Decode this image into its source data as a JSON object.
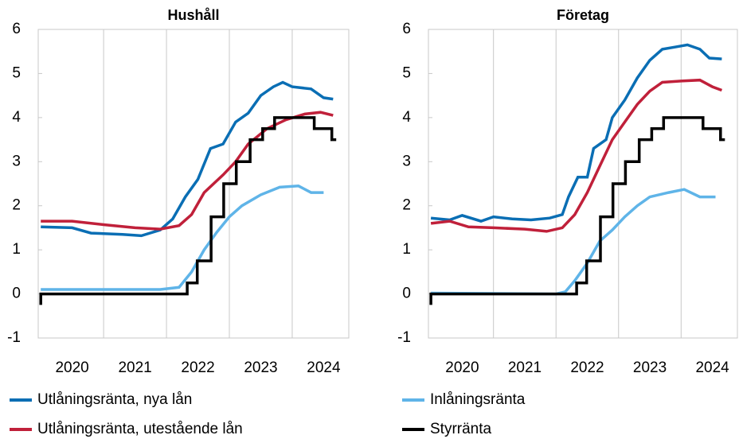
{
  "chart_data": [
    {
      "type": "line",
      "title": "Hushåll",
      "xlim": [
        2019.96,
        2024.9
      ],
      "ylim": [
        -1,
        6
      ],
      "xticks": [
        {
          "value": 2020.5,
          "label": "2020"
        },
        {
          "value": 2021.5,
          "label": "2021"
        },
        {
          "value": 2022.5,
          "label": "2022"
        },
        {
          "value": 2023.5,
          "label": "2023"
        },
        {
          "value": 2024.5,
          "label": "2024"
        }
      ],
      "yticks": [
        -1,
        0,
        1,
        2,
        3,
        4,
        5,
        6
      ],
      "series": [
        {
          "name": "Utlåningsränta, nya lån",
          "color": "#0a6eb4",
          "x": [
            2020.0,
            2020.5,
            2020.8,
            2021.3,
            2021.6,
            2021.9,
            2022.1,
            2022.3,
            2022.5,
            2022.7,
            2022.9,
            2023.1,
            2023.3,
            2023.5,
            2023.7,
            2023.85,
            2024.0,
            2024.3,
            2024.5,
            2024.65
          ],
          "values": [
            1.52,
            1.5,
            1.38,
            1.35,
            1.32,
            1.45,
            1.7,
            2.2,
            2.6,
            3.3,
            3.4,
            3.9,
            4.1,
            4.5,
            4.7,
            4.8,
            4.7,
            4.65,
            4.45,
            4.42
          ]
        },
        {
          "name": "Utlåningsränta, utestående lån",
          "color": "#c0203a",
          "x": [
            2020.0,
            2020.5,
            2021.0,
            2021.5,
            2021.9,
            2022.2,
            2022.4,
            2022.6,
            2022.9,
            2023.1,
            2023.3,
            2023.6,
            2023.9,
            2024.2,
            2024.45,
            2024.65
          ],
          "values": [
            1.65,
            1.65,
            1.57,
            1.5,
            1.47,
            1.55,
            1.8,
            2.3,
            2.7,
            3.0,
            3.4,
            3.75,
            3.95,
            4.08,
            4.12,
            4.05
          ]
        },
        {
          "name": "Inlåningsränta",
          "color": "#5fb4e8",
          "x": [
            2020.0,
            2021.0,
            2021.9,
            2022.2,
            2022.4,
            2022.6,
            2022.8,
            2023.0,
            2023.2,
            2023.5,
            2023.8,
            2024.1,
            2024.3,
            2024.5
          ],
          "values": [
            0.1,
            0.1,
            0.1,
            0.15,
            0.5,
            1.0,
            1.4,
            1.75,
            2.0,
            2.25,
            2.42,
            2.45,
            2.3,
            2.3
          ]
        },
        {
          "name": "Styrränta",
          "color": "#000000",
          "x": [
            2020.0,
            2020.0,
            2022.33,
            2022.33,
            2022.49,
            2022.49,
            2022.71,
            2022.71,
            2022.91,
            2022.91,
            2023.11,
            2023.11,
            2023.33,
            2023.33,
            2023.53,
            2023.53,
            2023.72,
            2023.72,
            2024.35,
            2024.35,
            2024.63,
            2024.63,
            2024.7
          ],
          "values": [
            -0.25,
            0,
            0,
            0.25,
            0.25,
            0.75,
            0.75,
            1.75,
            1.75,
            2.5,
            2.5,
            3.0,
            3.0,
            3.5,
            3.5,
            3.75,
            3.75,
            4.0,
            4.0,
            3.75,
            3.75,
            3.5,
            3.5
          ]
        }
      ]
    },
    {
      "type": "line",
      "title": "Företag",
      "xlim": [
        2019.96,
        2024.9
      ],
      "ylim": [
        -1,
        6
      ],
      "xticks": [
        {
          "value": 2020.5,
          "label": "2020"
        },
        {
          "value": 2021.5,
          "label": "2021"
        },
        {
          "value": 2022.5,
          "label": "2022"
        },
        {
          "value": 2023.5,
          "label": "2023"
        },
        {
          "value": 2024.5,
          "label": "2024"
        }
      ],
      "yticks": [
        -1,
        0,
        1,
        2,
        3,
        4,
        5,
        6
      ],
      "series": [
        {
          "color": "#0a6eb4",
          "x": [
            2020.0,
            2020.3,
            2020.5,
            2020.8,
            2021.0,
            2021.3,
            2021.6,
            2021.9,
            2022.1,
            2022.2,
            2022.35,
            2022.5,
            2022.6,
            2022.8,
            2022.9,
            2023.1,
            2023.3,
            2023.5,
            2023.7,
            2023.9,
            2024.1,
            2024.3,
            2024.45,
            2024.65
          ],
          "values": [
            1.72,
            1.68,
            1.78,
            1.65,
            1.75,
            1.7,
            1.68,
            1.72,
            1.8,
            2.2,
            2.65,
            2.65,
            3.3,
            3.5,
            4.0,
            4.4,
            4.9,
            5.3,
            5.55,
            5.6,
            5.65,
            5.55,
            5.35,
            5.33
          ]
        },
        {
          "color": "#c0203a",
          "x": [
            2020.0,
            2020.3,
            2020.6,
            2021.0,
            2021.5,
            2021.85,
            2022.1,
            2022.3,
            2022.5,
            2022.7,
            2022.9,
            2023.1,
            2023.3,
            2023.5,
            2023.7,
            2024.0,
            2024.3,
            2024.5,
            2024.65
          ],
          "values": [
            1.6,
            1.65,
            1.52,
            1.5,
            1.47,
            1.42,
            1.5,
            1.8,
            2.3,
            2.9,
            3.5,
            3.9,
            4.3,
            4.6,
            4.8,
            4.83,
            4.85,
            4.7,
            4.62
          ]
        },
        {
          "color": "#5fb4e8",
          "x": [
            2020.0,
            2022.0,
            2022.15,
            2022.3,
            2022.5,
            2022.7,
            2022.9,
            2023.1,
            2023.3,
            2023.5,
            2023.8,
            2024.05,
            2024.3,
            2024.55
          ],
          "values": [
            0.02,
            0.0,
            0.05,
            0.3,
            0.7,
            1.2,
            1.45,
            1.75,
            2.0,
            2.2,
            2.3,
            2.37,
            2.2,
            2.2
          ]
        },
        {
          "color": "#000000",
          "x": [
            2020.0,
            2020.0,
            2022.33,
            2022.33,
            2022.49,
            2022.49,
            2022.71,
            2022.71,
            2022.91,
            2022.91,
            2023.11,
            2023.11,
            2023.33,
            2023.33,
            2023.53,
            2023.53,
            2023.72,
            2023.72,
            2024.35,
            2024.35,
            2024.63,
            2024.63,
            2024.7
          ],
          "values": [
            -0.25,
            0,
            0,
            0.25,
            0.25,
            0.75,
            0.75,
            1.75,
            1.75,
            2.5,
            2.5,
            3.0,
            3.0,
            3.5,
            3.5,
            3.75,
            3.75,
            4.0,
            4.0,
            3.75,
            3.75,
            3.5,
            3.5
          ]
        }
      ]
    }
  ]
}
